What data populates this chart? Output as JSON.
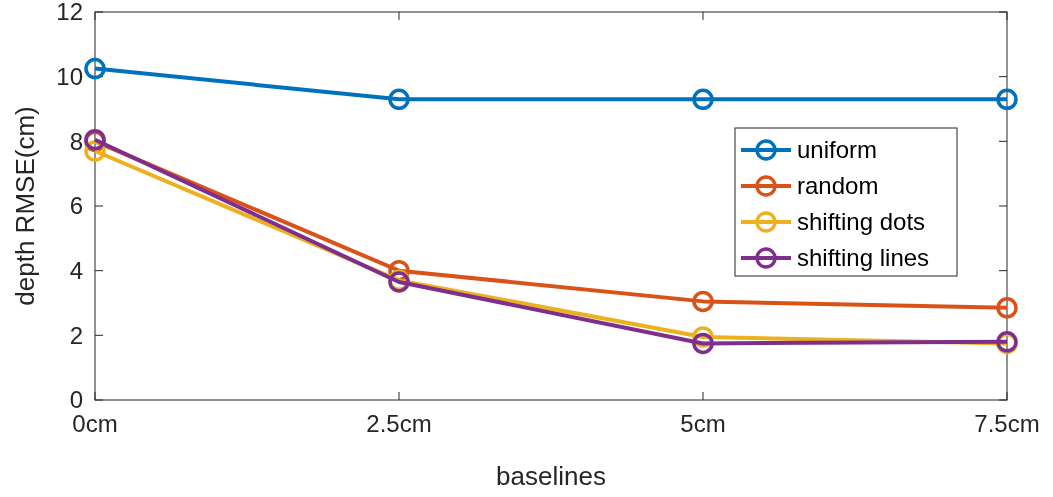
{
  "chart_data": {
    "type": "line",
    "xlabel": "baselines",
    "ylabel": "depth RMSE(cm)",
    "categories": [
      "0cm",
      "2.5cm",
      "5cm",
      "7.5cm"
    ],
    "ylim": [
      0,
      12
    ],
    "yticks": [
      0,
      2,
      4,
      6,
      8,
      10,
      12
    ],
    "marker": "circle",
    "legend": "right",
    "grid": false,
    "series": [
      {
        "name": "uniform",
        "color": "#0072bd",
        "values": [
          10.25,
          9.3,
          9.3,
          9.3
        ]
      },
      {
        "name": "random",
        "color": "#d95319",
        "values": [
          8.0,
          4.0,
          3.05,
          2.85
        ]
      },
      {
        "name": "shifting dots",
        "color": "#edb120",
        "values": [
          7.7,
          3.7,
          1.95,
          1.75
        ]
      },
      {
        "name": "shifting lines",
        "color": "#7e2f8e",
        "values": [
          8.05,
          3.65,
          1.75,
          1.8
        ]
      }
    ]
  }
}
